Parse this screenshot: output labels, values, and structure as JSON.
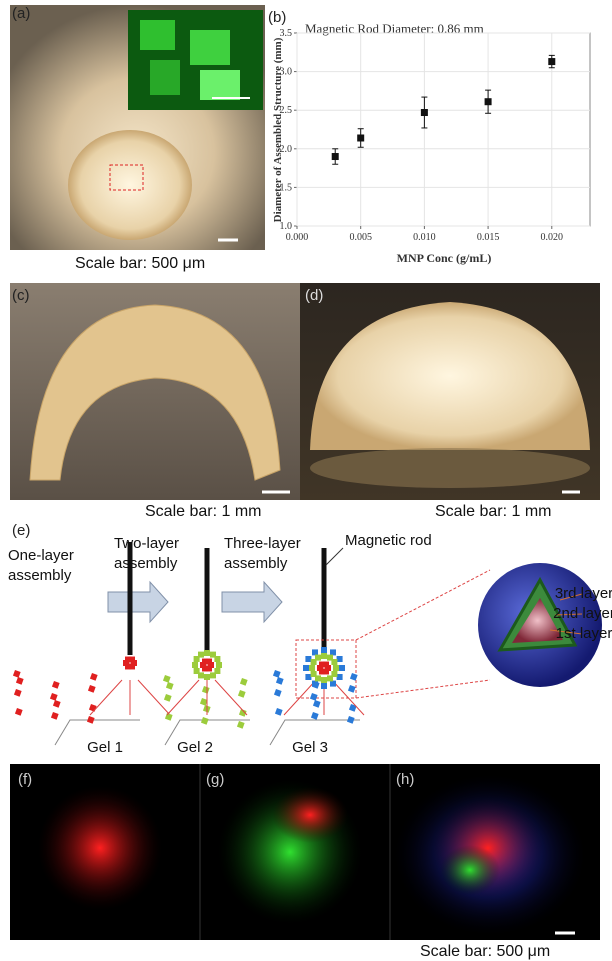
{
  "panel_labels": [
    "(a)",
    "(b)",
    "(c)",
    "(d)",
    "(e)",
    "(f)",
    "(g)",
    "(h)"
  ],
  "scale_bars": [
    "Scale bar: 500 μm",
    "Scale bar: 1 mm",
    "Scale bar: 1 mm",
    "Scale bar: 500 μm"
  ],
  "schematic": {
    "steps": [
      [
        "One-layer",
        "assembly"
      ],
      [
        "Two-layer",
        "assembly"
      ],
      [
        "Three-layer",
        "assembly"
      ]
    ],
    "rod_label": "Magnetic rod",
    "layers": [
      "3rd layer",
      "2nd layer",
      "1st layer"
    ],
    "gels": [
      "Gel 1",
      "Gel 2",
      "Gel 3"
    ]
  },
  "chart_data": {
    "type": "scatter",
    "title": "Magnetic Rod Diameter: 0.86 mm",
    "x_label": "MNP Conc (g/mL)",
    "y_label": "Diameter of Assembled Structure (mm)",
    "x": [
      0.003,
      0.005,
      0.01,
      0.015,
      0.02
    ],
    "values": [
      1.9,
      2.14,
      2.47,
      2.61,
      3.13
    ],
    "errors": [
      0.1,
      0.12,
      0.2,
      0.15,
      0.08
    ],
    "color": "#111111",
    "xlim": [
      0,
      0.023
    ],
    "ylim": [
      1.0,
      3.5
    ],
    "xticks": [
      {
        "value": 0,
        "label": "0.000"
      },
      0.005,
      {
        "value": 0.01,
        "label": "0.010"
      },
      0.015,
      {
        "value": 0.02,
        "label": "0.020"
      }
    ],
    "yticks": [
      {
        "value": 1,
        "label": "1.0"
      },
      1.5,
      {
        "value": 2,
        "label": "2.0"
      },
      2.5,
      {
        "value": 3,
        "label": "3.0"
      },
      3.5
    ],
    "grid": true
  }
}
